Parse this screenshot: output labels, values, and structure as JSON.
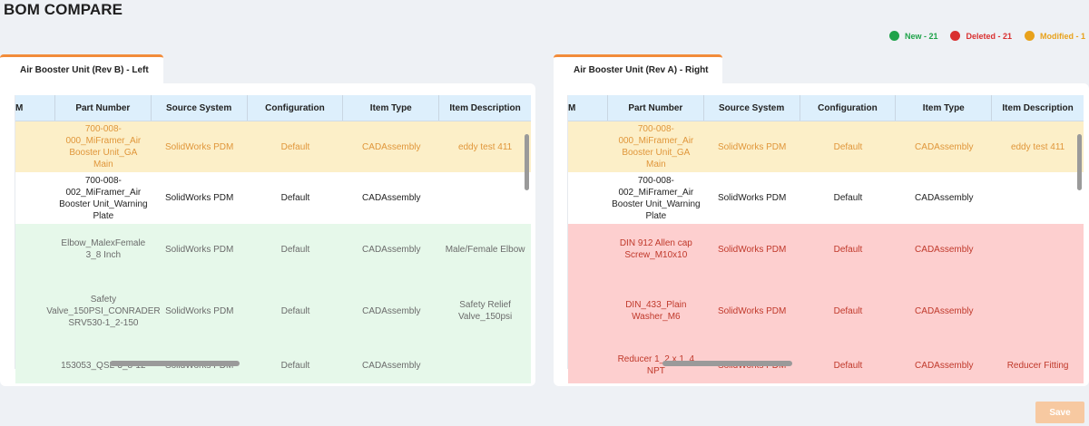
{
  "page_title": "BOM COMPARE",
  "legend": [
    {
      "label": "New - 21",
      "color": "#1fa34a"
    },
    {
      "label": "Deleted - 21",
      "color": "#d93030"
    },
    {
      "label": "Modified - 1",
      "color": "#e8a21c"
    }
  ],
  "left": {
    "tab_label": "Air Booster Unit (Rev B) - Left",
    "columns": [
      "M",
      "Part Number",
      "Source System",
      "Configuration",
      "Item Type",
      "Item Description"
    ],
    "rows": [
      {
        "status": "modified",
        "part": "700-008-000_MiFramer_Air Booster Unit_GA Main",
        "source": "SolidWorks PDM",
        "config": "Default",
        "type": "CADAssembly",
        "desc": "eddy test 411"
      },
      {
        "status": "unchanged",
        "part": "700-008-002_MiFramer_Air Booster Unit_Warning Plate",
        "source": "SolidWorks PDM",
        "config": "Default",
        "type": "CADAssembly",
        "desc": ""
      },
      {
        "status": "new",
        "part": "Elbow_MalexFemale 3_8 Inch",
        "source": "SolidWorks PDM",
        "config": "Default",
        "type": "CADAssembly",
        "desc": "Male/Female Elbow"
      },
      {
        "status": "new",
        "part": "Safety Valve_150PSI_CONRADER SRV530-1_2-150",
        "source": "SolidWorks PDM",
        "config": "Default",
        "type": "CADAssembly",
        "desc": "Safety Relief Valve_150psi"
      },
      {
        "status": "new",
        "part": "153053_QSL-3_8-12",
        "source": "SolidWorks PDM",
        "config": "Default",
        "type": "CADAssembly",
        "desc": ""
      }
    ]
  },
  "right": {
    "tab_label": "Air Booster Unit (Rev A) - Right",
    "columns": [
      "M",
      "Part Number",
      "Source System",
      "Configuration",
      "Item Type",
      "Item Description"
    ],
    "rows": [
      {
        "status": "modified",
        "part": "700-008-000_MiFramer_Air Booster Unit_GA Main",
        "source": "SolidWorks PDM",
        "config": "Default",
        "type": "CADAssembly",
        "desc": "eddy test 411"
      },
      {
        "status": "unchanged",
        "part": "700-008-002_MiFramer_Air Booster Unit_Warning Plate",
        "source": "SolidWorks PDM",
        "config": "Default",
        "type": "CADAssembly",
        "desc": ""
      },
      {
        "status": "deleted",
        "part": "DIN 912 Allen cap Screw_M10x10",
        "source": "SolidWorks PDM",
        "config": "Default",
        "type": "CADAssembly",
        "desc": ""
      },
      {
        "status": "deleted",
        "part": "DIN_433_Plain Washer_M6",
        "source": "SolidWorks PDM",
        "config": "Default",
        "type": "CADAssembly",
        "desc": ""
      },
      {
        "status": "deleted",
        "part": "Reducer 1_2 x 1_4 NPT",
        "source": "SolidWorks PDM",
        "config": "Default",
        "type": "CADAssembly",
        "desc": "Reducer Fitting"
      }
    ]
  },
  "save_label": "Save"
}
